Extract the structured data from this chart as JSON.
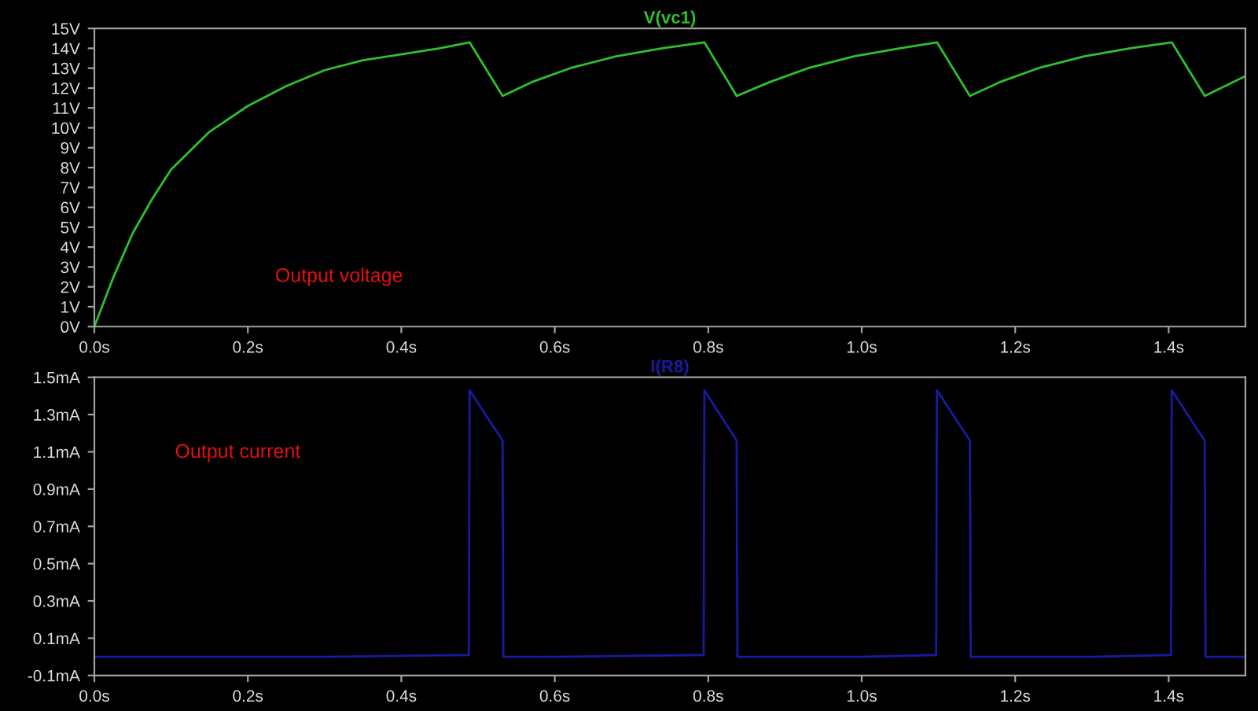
{
  "chart_data": [
    {
      "type": "line",
      "xlim": [
        0,
        1.5
      ],
      "ylim": [
        0,
        15
      ],
      "xticks": [
        {
          "value": 0,
          "label": "0.0s"
        },
        {
          "value": 0.2,
          "label": "0.2s"
        },
        {
          "value": 0.4,
          "label": "0.4s"
        },
        {
          "value": 0.6,
          "label": "0.6s"
        },
        {
          "value": 0.8,
          "label": "0.8s"
        },
        {
          "value": 1.0,
          "label": "1.0s"
        },
        {
          "value": 1.2,
          "label": "1.2s"
        },
        {
          "value": 1.4,
          "label": "1.4s"
        }
      ],
      "yticks": [
        {
          "value": 0,
          "label": "0V"
        },
        {
          "value": 1,
          "label": "1V"
        },
        {
          "value": 2,
          "label": "2V"
        },
        {
          "value": 3,
          "label": "3V"
        },
        {
          "value": 4,
          "label": "4V"
        },
        {
          "value": 5,
          "label": "5V"
        },
        {
          "value": 6,
          "label": "6V"
        },
        {
          "value": 7,
          "label": "7V"
        },
        {
          "value": 8,
          "label": "8V"
        },
        {
          "value": 9,
          "label": "9V"
        },
        {
          "value": 10,
          "label": "10V"
        },
        {
          "value": 11,
          "label": "11V"
        },
        {
          "value": 12,
          "label": "12V"
        },
        {
          "value": 13,
          "label": "13V"
        },
        {
          "value": 14,
          "label": "14V"
        },
        {
          "value": 15,
          "label": "15V"
        }
      ],
      "grid": false,
      "annotations": [
        "Output voltage"
      ],
      "series": [
        {
          "name": "V(vc1)",
          "color": "#2ec02e",
          "x": [
            0,
            0.025,
            0.05,
            0.075,
            0.1,
            0.15,
            0.2,
            0.25,
            0.3,
            0.35,
            0.4,
            0.45,
            0.489,
            0.532,
            0.57,
            0.62,
            0.68,
            0.74,
            0.795,
            0.837,
            0.88,
            0.93,
            0.99,
            1.05,
            1.098,
            1.141,
            1.18,
            1.23,
            1.29,
            1.35,
            1.404,
            1.447,
            1.5
          ],
          "values": [
            0,
            2.5,
            4.7,
            6.4,
            7.9,
            9.8,
            11.1,
            12.1,
            12.9,
            13.4,
            13.7,
            14.0,
            14.3,
            11.6,
            12.3,
            13.0,
            13.6,
            14.0,
            14.3,
            11.6,
            12.3,
            13.0,
            13.6,
            14.0,
            14.3,
            11.6,
            12.3,
            13.0,
            13.6,
            14.0,
            14.3,
            11.6,
            12.6
          ]
        }
      ]
    },
    {
      "type": "line",
      "xlim": [
        0,
        1.5
      ],
      "ylim": [
        -0.1,
        1.5
      ],
      "xticks": [
        {
          "value": 0,
          "label": "0.0s"
        },
        {
          "value": 0.2,
          "label": "0.2s"
        },
        {
          "value": 0.4,
          "label": "0.4s"
        },
        {
          "value": 0.6,
          "label": "0.6s"
        },
        {
          "value": 0.8,
          "label": "0.8s"
        },
        {
          "value": 1.0,
          "label": "1.0s"
        },
        {
          "value": 1.2,
          "label": "1.2s"
        },
        {
          "value": 1.4,
          "label": "1.4s"
        }
      ],
      "yticks": [
        {
          "value": -0.1,
          "label": "-0.1mA"
        },
        {
          "value": 0.1,
          "label": "0.1mA"
        },
        {
          "value": 0.3,
          "label": "0.3mA"
        },
        {
          "value": 0.5,
          "label": "0.5mA"
        },
        {
          "value": 0.7,
          "label": "0.7mA"
        },
        {
          "value": 0.9,
          "label": "0.9mA"
        },
        {
          "value": 1.1,
          "label": "1.1mA"
        },
        {
          "value": 1.3,
          "label": "1.3mA"
        },
        {
          "value": 1.5,
          "label": "1.5mA"
        }
      ],
      "grid": false,
      "annotations": [
        "Output current"
      ],
      "series": [
        {
          "name": "I(R8)",
          "color": "#1a1aa0",
          "x": [
            0,
            0.3,
            0.488,
            0.489,
            0.532,
            0.533,
            0.6,
            0.794,
            0.795,
            0.837,
            0.838,
            1.0,
            1.097,
            1.098,
            1.141,
            1.142,
            1.3,
            1.403,
            1.404,
            1.447,
            1.448,
            1.5
          ],
          "values": [
            0.0,
            0.0,
            0.01,
            1.43,
            1.16,
            0.0,
            0.0,
            0.01,
            1.43,
            1.16,
            0.0,
            0.0,
            0.01,
            1.43,
            1.16,
            0.0,
            0.0,
            0.01,
            1.43,
            1.16,
            0.0,
            0.0
          ]
        }
      ]
    }
  ]
}
